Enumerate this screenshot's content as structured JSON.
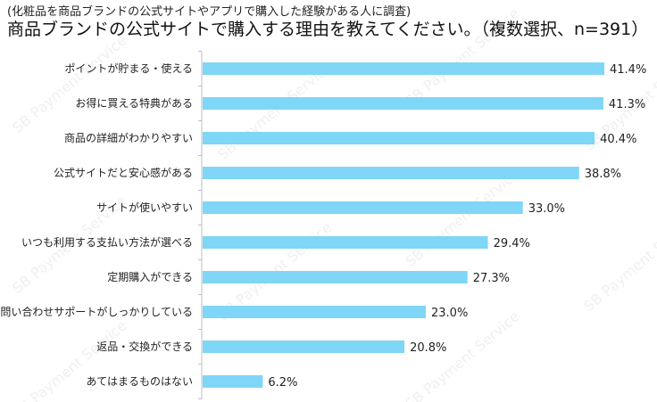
{
  "header": {
    "subtitle": "(化粧品を商品ブランドの公式サイトやアプリで購入した経験がある人に調査)",
    "title": "商品ブランドの公式サイトで購入する理由を教えてください。（複数選択、n=391）"
  },
  "watermark": {
    "text": "SB Payment Service"
  },
  "colors": {
    "bar": "#7fd6f7",
    "axis": "#bfbfbf",
    "text": "#222222"
  },
  "chart_data": {
    "type": "bar",
    "orientation": "horizontal",
    "title": "商品ブランドの公式サイトで購入する理由を教えてください。（複数選択、n=391）",
    "subtitle": "(化粧品を商品ブランドの公式サイトやアプリで購入した経験がある人に調査)",
    "categories": [
      "ポイントが貯まる・使える",
      "お得に買える特典がある",
      "商品の詳細がわかりやすい",
      "公式サイトだと安心感がある",
      "サイトが使いやすい",
      "いつも利用する支払い方法が選べる",
      "定期購入ができる",
      "問い合わせサポートがしっかりしている",
      "返品・交換ができる",
      "あてはまるものはない"
    ],
    "values": [
      41.4,
      41.3,
      40.4,
      38.8,
      33.0,
      29.4,
      27.3,
      23.0,
      20.8,
      6.2
    ],
    "value_labels": [
      "41.4%",
      "41.3%",
      "40.4%",
      "38.8%",
      "33.0%",
      "29.4%",
      "27.3%",
      "23.0%",
      "20.8%",
      "6.2%"
    ],
    "xlim": [
      0,
      41.4
    ],
    "grid": false,
    "legend": "none"
  }
}
